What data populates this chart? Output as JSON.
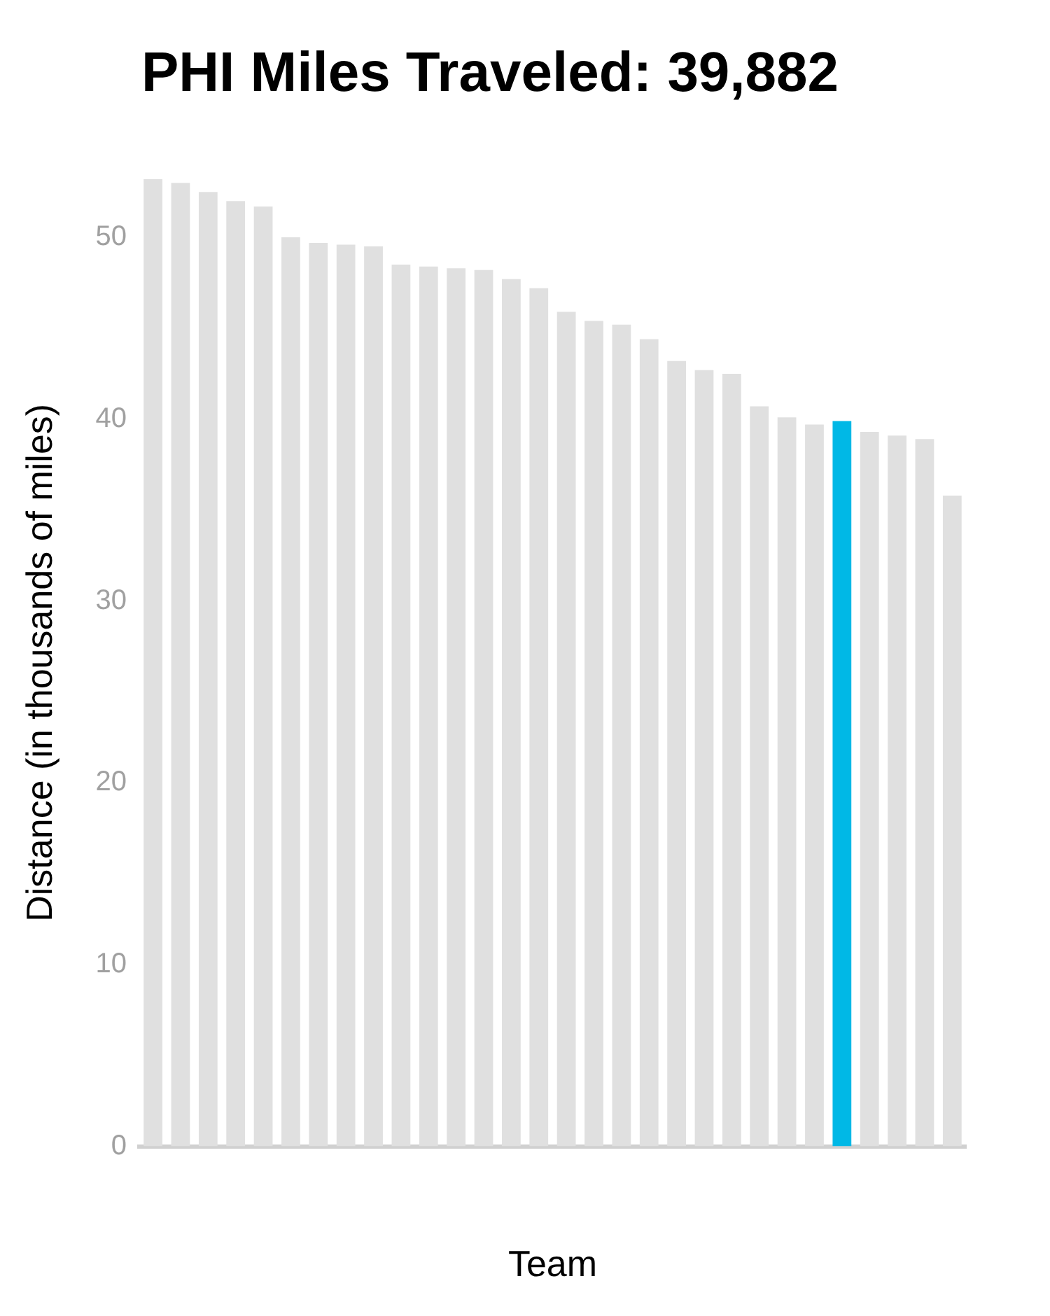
{
  "chart_data": {
    "type": "bar",
    "title": "PHI Miles Traveled: 39,882",
    "xlabel": "Team",
    "ylabel": "Distance (in thousands of miles)",
    "categories": [
      null,
      null,
      null,
      null,
      null,
      null,
      null,
      null,
      null,
      null,
      null,
      null,
      null,
      null,
      null,
      null,
      null,
      null,
      null,
      null,
      null,
      null,
      null,
      null,
      null,
      null,
      null,
      null,
      null,
      null
    ],
    "values": [
      53.2,
      53.0,
      52.5,
      52.0,
      51.7,
      50.0,
      49.7,
      49.6,
      49.5,
      48.5,
      48.4,
      48.3,
      48.2,
      47.7,
      47.2,
      45.9,
      45.4,
      45.2,
      44.4,
      43.2,
      42.7,
      42.5,
      40.7,
      40.1,
      39.7,
      39.9,
      39.3,
      39.1,
      38.9,
      35.8
    ],
    "colors": [
      "#e0e0e0",
      "#e0e0e0",
      "#e0e0e0",
      "#e0e0e0",
      "#e0e0e0",
      "#e0e0e0",
      "#e0e0e0",
      "#e0e0e0",
      "#e0e0e0",
      "#e0e0e0",
      "#e0e0e0",
      "#e0e0e0",
      "#e0e0e0",
      "#e0e0e0",
      "#e0e0e0",
      "#e0e0e0",
      "#e0e0e0",
      "#e0e0e0",
      "#e0e0e0",
      "#e0e0e0",
      "#e0e0e0",
      "#e0e0e0",
      "#e0e0e0",
      "#e0e0e0",
      "#e0e0e0",
      "#00b8e6",
      "#e0e0e0",
      "#e0e0e0",
      "#e0e0e0",
      "#e0e0e0"
    ],
    "ylim": [
      0,
      53.2
    ],
    "yticks": [
      0,
      10,
      20,
      30,
      40,
      50
    ],
    "grid": false,
    "legend": false,
    "tick_labels": "y"
  }
}
